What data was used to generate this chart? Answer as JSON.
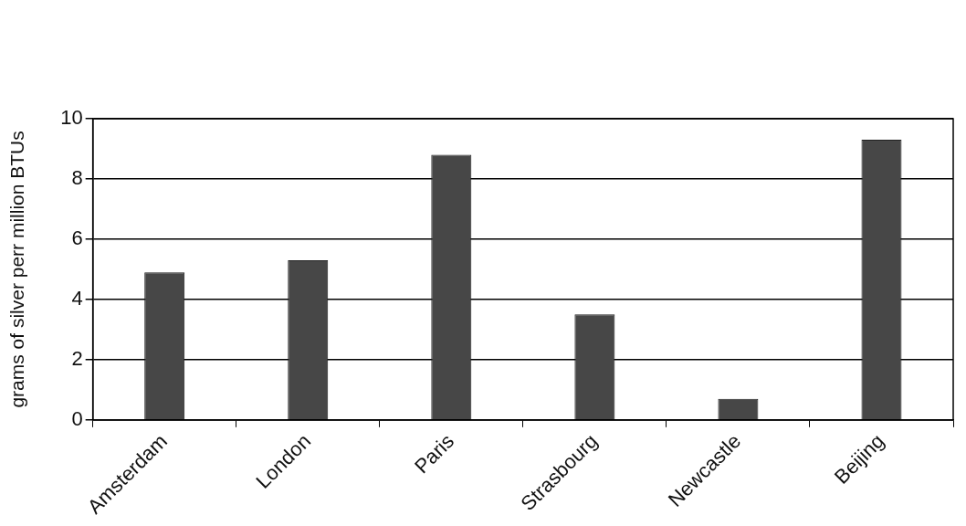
{
  "chart_data": {
    "type": "bar",
    "ylabel": "grams of silver perr million BTUs",
    "categories": [
      "Amsterdam",
      "London",
      "Paris",
      "Strasbourg",
      "Newcastle",
      "Beijing"
    ],
    "values": [
      4.9,
      5.3,
      8.8,
      3.5,
      0.7,
      9.3
    ],
    "color": "#474747",
    "ylim": [
      0,
      10
    ],
    "yticks": [
      0,
      2,
      4,
      6,
      8,
      10
    ],
    "grid": "y",
    "legend": false
  }
}
